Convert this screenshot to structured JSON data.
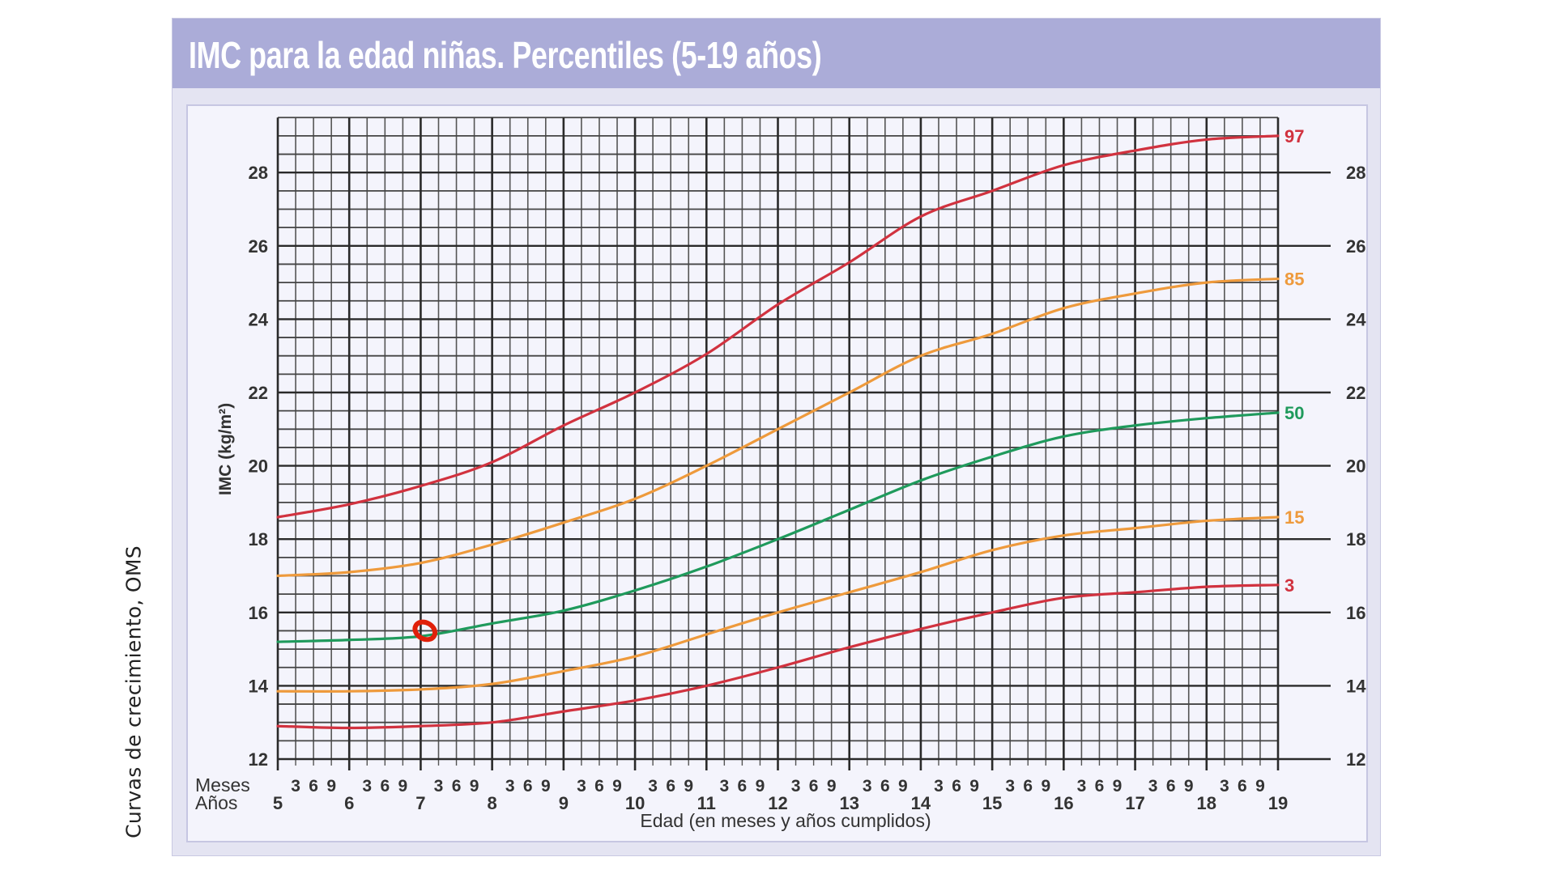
{
  "side_caption": "Curvas de crecimiento, OMS",
  "header": {
    "title": "IMC para la edad niñas. Percentiles (5-19 años)"
  },
  "axes": {
    "ylabel": "IMC (kg/m²)",
    "xlabel": "Edad (en meses y años cumplidos)",
    "months_label": "Meses",
    "years_label": "Años",
    "month_ticks": [
      "3",
      "6",
      "9"
    ],
    "y_ticks": [
      12,
      14,
      16,
      18,
      20,
      22,
      24,
      26,
      28
    ],
    "x_ticks": [
      5,
      6,
      7,
      8,
      9,
      10,
      11,
      12,
      13,
      14,
      15,
      16,
      17,
      18,
      19
    ]
  },
  "colors": {
    "header_bg": "#abacd8",
    "p97": "#d1323f",
    "p85": "#ee9a3c",
    "p50": "#1f9a5c",
    "p15": "#ee9a3c",
    "p3": "#d1323f",
    "marker": "#e0200a",
    "grid": "#2a2a2a"
  },
  "marker": {
    "age": 7.06,
    "bmi": 15.5,
    "label": "patient-point"
  },
  "chart_data": {
    "type": "line",
    "title": "IMC para la edad niñas. Percentiles (5-19 años)",
    "xlabel": "Edad (en meses y años cumplidos)",
    "ylabel": "IMC (kg/m²)",
    "xlim": [
      5,
      19
    ],
    "ylim": [
      12,
      29.5
    ],
    "grid": true,
    "legend_position": "right-end-labels",
    "x": [
      5,
      6,
      7,
      8,
      9,
      10,
      11,
      12,
      13,
      14,
      15,
      16,
      17,
      18,
      19
    ],
    "series": [
      {
        "name": "97",
        "values": [
          18.6,
          18.95,
          19.45,
          20.1,
          21.1,
          22.0,
          23.05,
          24.4,
          25.55,
          26.8,
          27.5,
          28.2,
          28.6,
          28.9,
          29.0
        ]
      },
      {
        "name": "85",
        "values": [
          17.0,
          17.1,
          17.35,
          17.85,
          18.45,
          19.1,
          20.0,
          21.0,
          22.0,
          23.0,
          23.6,
          24.3,
          24.7,
          25.0,
          25.1
        ]
      },
      {
        "name": "50",
        "values": [
          15.2,
          15.25,
          15.35,
          15.7,
          16.05,
          16.6,
          17.25,
          18.0,
          18.8,
          19.6,
          20.25,
          20.8,
          21.1,
          21.3,
          21.45
        ]
      },
      {
        "name": "15",
        "values": [
          13.85,
          13.85,
          13.9,
          14.05,
          14.4,
          14.8,
          15.4,
          16.0,
          16.55,
          17.1,
          17.7,
          18.1,
          18.3,
          18.5,
          18.6
        ]
      },
      {
        "name": "3",
        "values": [
          12.9,
          12.85,
          12.9,
          13.0,
          13.3,
          13.6,
          14.0,
          14.5,
          15.05,
          15.55,
          16.0,
          16.4,
          16.55,
          16.7,
          16.75
        ]
      }
    ],
    "annotations": [
      {
        "type": "circle",
        "age": 7.06,
        "bmi": 15.5,
        "color": "#e0200a"
      }
    ]
  }
}
